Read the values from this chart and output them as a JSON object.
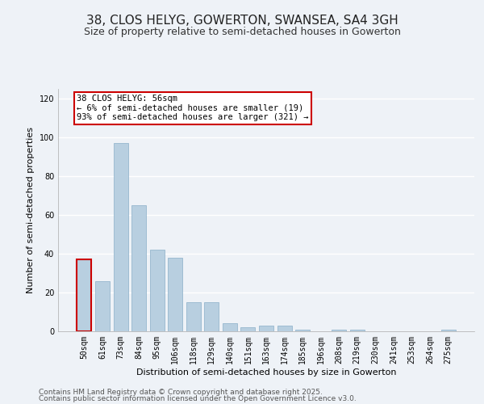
{
  "title": "38, CLOS HELYG, GOWERTON, SWANSEA, SA4 3GH",
  "subtitle": "Size of property relative to semi-detached houses in Gowerton",
  "xlabel": "Distribution of semi-detached houses by size in Gowerton",
  "ylabel": "Number of semi-detached properties",
  "categories": [
    "50sqm",
    "61sqm",
    "73sqm",
    "84sqm",
    "95sqm",
    "106sqm",
    "118sqm",
    "129sqm",
    "140sqm",
    "151sqm",
    "163sqm",
    "174sqm",
    "185sqm",
    "196sqm",
    "208sqm",
    "219sqm",
    "230sqm",
    "241sqm",
    "253sqm",
    "264sqm",
    "275sqm"
  ],
  "values": [
    37,
    26,
    97,
    65,
    42,
    38,
    15,
    15,
    4,
    2,
    3,
    3,
    1,
    0,
    1,
    1,
    0,
    0,
    0,
    0,
    1
  ],
  "bar_color": "#b8cfe0",
  "bar_edge_color": "#8aaec8",
  "highlight_bar_index": 0,
  "highlight_edge_color": "#cc0000",
  "annotation_text": "38 CLOS HELYG: 56sqm\n← 6% of semi-detached houses are smaller (19)\n93% of semi-detached houses are larger (321) →",
  "annotation_box_facecolor": "#ffffff",
  "annotation_box_edgecolor": "#cc0000",
  "footer1": "Contains HM Land Registry data © Crown copyright and database right 2025.",
  "footer2": "Contains public sector information licensed under the Open Government Licence v3.0.",
  "ylim": [
    0,
    125
  ],
  "yticks": [
    0,
    20,
    40,
    60,
    80,
    100,
    120
  ],
  "bg_color": "#eef2f7",
  "grid_color": "#ffffff",
  "title_fontsize": 11,
  "subtitle_fontsize": 9,
  "axis_label_fontsize": 8,
  "tick_fontsize": 7,
  "annotation_fontsize": 7.5,
  "footer_fontsize": 6.5
}
